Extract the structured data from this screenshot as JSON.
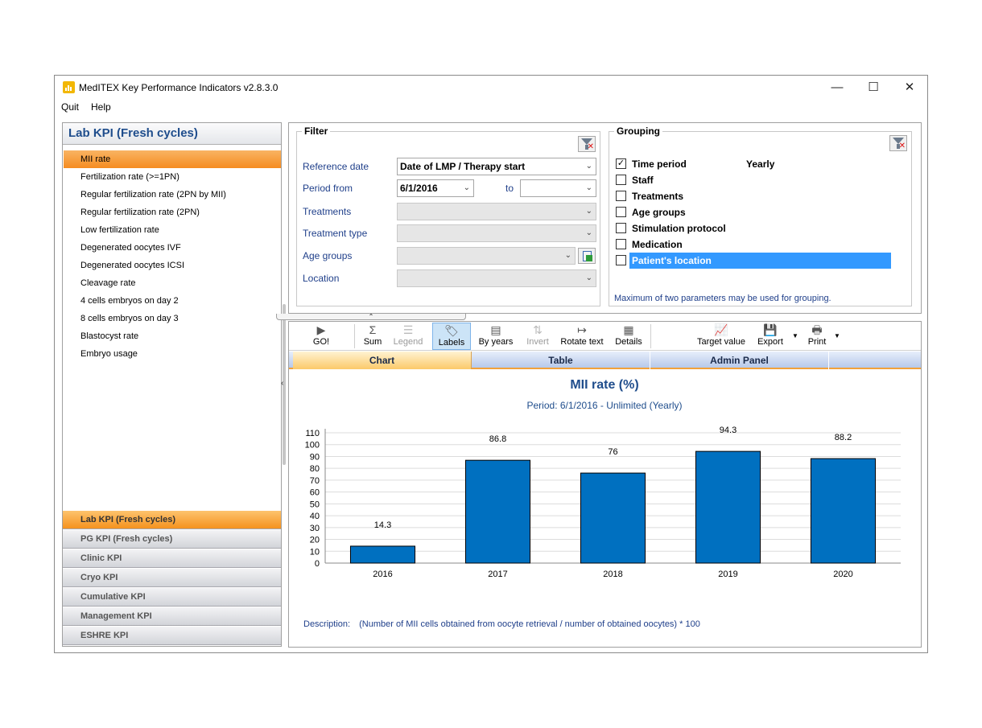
{
  "window": {
    "title": "MedITEX Key Performance Indicators v2.8.3.0",
    "controls": {
      "minimize": "—",
      "maximize": "☐",
      "close": "✕"
    }
  },
  "menu": {
    "items": [
      "Quit",
      "Help"
    ]
  },
  "sidebar": {
    "header": "Lab KPI (Fresh cycles)",
    "items": [
      "MII rate",
      "Fertilization rate (>=1PN)",
      "Regular fertilization rate (2PN by MII)",
      "Regular fertilization rate (2PN)",
      "Low fertilization rate",
      "Degenerated oocytes IVF",
      "Degenerated oocytes ICSI",
      "Cleavage rate",
      "4 cells embryos on day 2",
      "8 cells embryos on day 3",
      "Blastocyst rate",
      "Embryo usage"
    ],
    "selected_index": 0,
    "groups": [
      "Lab KPI (Fresh cycles)",
      "PG KPI (Fresh cycles)",
      "Clinic KPI",
      "Cryo KPI",
      "Cumulative KPI",
      "Management KPI",
      "ESHRE KPI"
    ],
    "active_group_index": 0
  },
  "filter": {
    "title": "Filter",
    "reference_date_label": "Reference date",
    "reference_date_value": "Date of LMP / Therapy start",
    "period_from_label": "Period from",
    "period_from_value": "6/1/2016",
    "to_label": "to",
    "to_value": "",
    "treatments_label": "Treatments",
    "treatment_type_label": "Treatment type",
    "age_groups_label": "Age groups",
    "location_label": "Location",
    "chevron": "⌄"
  },
  "grouping": {
    "title": "Grouping",
    "items": [
      {
        "label": "Time period",
        "checked": true,
        "extra": "Yearly"
      },
      {
        "label": "Staff",
        "checked": false
      },
      {
        "label": "Treatments",
        "checked": false
      },
      {
        "label": "Age groups",
        "checked": false
      },
      {
        "label": "Stimulation protocol",
        "checked": false
      },
      {
        "label": "Medication",
        "checked": false
      },
      {
        "label": "Patient's location",
        "checked": false,
        "highlighted": true
      }
    ],
    "note": "Maximum of two parameters may be used for grouping."
  },
  "toolbar": {
    "go": "GO!",
    "sum": "Sum",
    "legend": "Legend",
    "labels": "Labels",
    "by_years": "By years",
    "invert": "Invert",
    "rotate_text": "Rotate text",
    "details": "Details",
    "target_value": "Target value",
    "export": "Export",
    "print": "Print"
  },
  "tabs": [
    "Chart",
    "Table",
    "Admin Panel"
  ],
  "active_tab": 0,
  "chart_data": {
    "type": "bar",
    "title": "MII rate (%)",
    "subtitle": "Period: 6/1/2016 - Unlimited (Yearly)",
    "categories": [
      "2016",
      "2017",
      "2018",
      "2019",
      "2020"
    ],
    "values": [
      14.3,
      86.8,
      76,
      94.3,
      88.2
    ],
    "ylim": [
      0,
      110
    ],
    "yticks": [
      0,
      10,
      20,
      30,
      40,
      50,
      60,
      70,
      80,
      90,
      100,
      110
    ],
    "grid": true,
    "bar_color": "#0070c0"
  },
  "description": {
    "label": "Description:",
    "text": "(Number of MII cells obtained from oocyte retrieval / number of obtained oocytes) * 100"
  }
}
